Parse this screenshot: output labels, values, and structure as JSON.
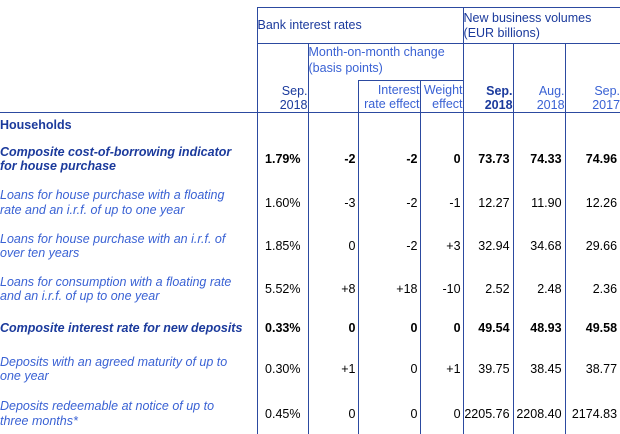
{
  "colors": {
    "navy_text": "#1B3A9C",
    "light_blue_text": "#3A62D4",
    "grid_border": "#2C4AA0",
    "number_text": "#000000"
  },
  "table": {
    "header": {
      "bank_interest_rates": "Bank interest rates",
      "new_business_volumes": "New business volumes\n(EUR billions)",
      "mom_change": "Month-on-month change\n(basis points)",
      "rates_period": "Sep.\n2018",
      "interest_rate_effect": "Interest\nrate effect",
      "weight_effect": "Weight\neffect",
      "vol_periods": [
        "Sep.\n2018",
        "Aug.\n2018",
        "Sep.\n2017"
      ]
    },
    "rows": [
      {
        "label": "Households",
        "style": "section",
        "values": [
          "",
          "",
          "",
          "",
          "",
          "",
          ""
        ]
      },
      {
        "label": "Composite cost-of-borrowing indicator\nfor house purchase",
        "style": "bold",
        "values": [
          "1.79%",
          "-2",
          "-2",
          "0",
          "73.73",
          "74.33",
          "74.96"
        ]
      },
      {
        "label": "Loans for house purchase with a floating\nrate and an i.r.f. of up to one year",
        "style": "normal",
        "values": [
          "1.60%",
          "-3",
          "-2",
          "-1",
          "12.27",
          "11.90",
          "12.26"
        ]
      },
      {
        "label": "Loans for house purchase with an i.r.f. of\nover ten years",
        "style": "normal",
        "values": [
          "1.85%",
          "0",
          "-2",
          "+3",
          "32.94",
          "34.68",
          "29.66"
        ]
      },
      {
        "label": "Loans for consumption with a floating rate\nand an i.r.f. of up to one year",
        "style": "normal",
        "values": [
          "5.52%",
          "+8",
          "+18",
          "-10",
          "2.52",
          "2.48",
          "2.36"
        ]
      },
      {
        "label": "Composite interest rate for new deposits",
        "style": "bold",
        "values": [
          "0.33%",
          "0",
          "0",
          "0",
          "49.54",
          "48.93",
          "49.58"
        ]
      },
      {
        "label": "Deposits with an agreed maturity of up to\none year",
        "style": "normal",
        "values": [
          "0.30%",
          "+1",
          "0",
          "+1",
          "39.75",
          "38.45",
          "38.77"
        ]
      },
      {
        "label": "Deposits redeemable at notice of up to\nthree months*",
        "style": "normal",
        "values": [
          "0.45%",
          "0",
          "0",
          "0",
          "2205.76",
          "2208.40",
          "2174.83"
        ]
      }
    ]
  }
}
